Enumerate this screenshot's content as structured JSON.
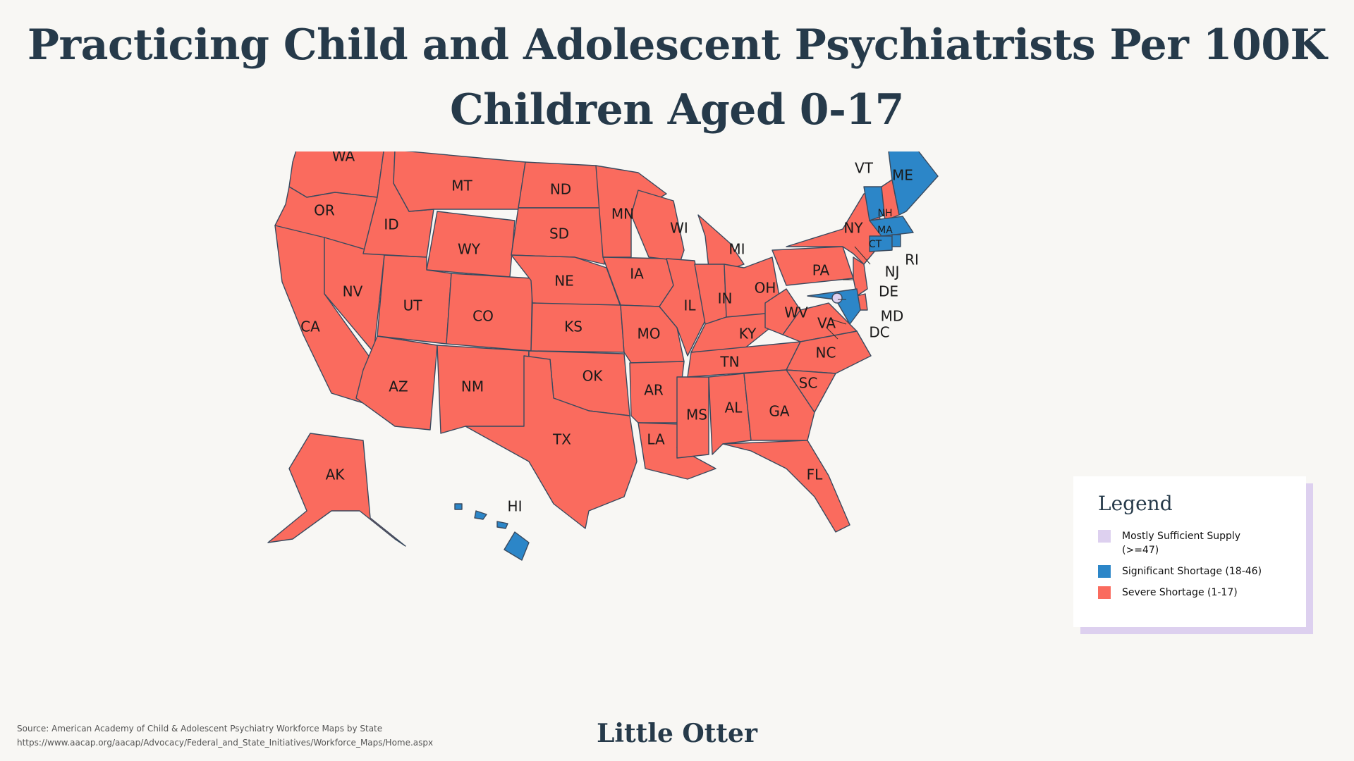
{
  "title_line1": "Practicing Child and Adolescent Psychiatrists Per 100K",
  "title_line2": "Children Aged 0-17",
  "colors": {
    "severe": "#fa6b5e",
    "significant": "#2c86c8",
    "sufficient": "#ddd0ef",
    "border": "#3a4a5e",
    "background": "#f8f7f4"
  },
  "legend": {
    "title": "Legend",
    "items": [
      {
        "label": "Mostly Sufficient Supply",
        "label2": "(>=47)",
        "color": "#ddd0ef"
      },
      {
        "label": "Significant Shortage (18-46)",
        "color": "#2c86c8"
      },
      {
        "label": "Severe Shortage (1-17)",
        "color": "#fa6b5e"
      }
    ]
  },
  "states": {
    "WA": "severe",
    "OR": "severe",
    "CA": "severe",
    "NV": "severe",
    "ID": "severe",
    "MT": "severe",
    "WY": "severe",
    "UT": "severe",
    "AZ": "severe",
    "CO": "severe",
    "NM": "severe",
    "ND": "severe",
    "SD": "severe",
    "NE": "severe",
    "KS": "severe",
    "OK": "severe",
    "TX": "severe",
    "MN": "severe",
    "IA": "severe",
    "MO": "severe",
    "AR": "severe",
    "LA": "severe",
    "WI": "severe",
    "IL": "severe",
    "MS": "severe",
    "MI": "severe",
    "IN": "severe",
    "KY": "severe",
    "TN": "severe",
    "AL": "severe",
    "OH": "severe",
    "WV": "severe",
    "VA": "severe",
    "NC": "severe",
    "SC": "severe",
    "GA": "severe",
    "FL": "severe",
    "PA": "severe",
    "NY": "severe",
    "NJ": "severe",
    "DE": "severe",
    "NH": "severe",
    "AK": "severe",
    "ME": "significant",
    "VT": "significant",
    "MA": "significant",
    "CT": "significant",
    "RI": "significant",
    "MD": "significant",
    "HI": "significant",
    "DC": "sufficient"
  },
  "labels": {
    "WA": "WA",
    "OR": "OR",
    "CA": "CA",
    "NV": "NV",
    "ID": "ID",
    "MT": "MT",
    "WY": "WY",
    "UT": "UT",
    "AZ": "AZ",
    "CO": "CO",
    "NM": "NM",
    "ND": "ND",
    "SD": "SD",
    "NE": "NE",
    "KS": "KS",
    "OK": "OK",
    "TX": "TX",
    "MN": "MN",
    "IA": "IA",
    "MO": "MO",
    "AR": "AR",
    "LA": "LA",
    "WI": "WI",
    "IL": "IL",
    "MS": "MS",
    "MI": "MI",
    "IN": "IN",
    "KY": "KY",
    "TN": "TN",
    "AL": "AL",
    "OH": "OH",
    "WV": "WV",
    "VA": "VA",
    "NC": "NC",
    "SC": "SC",
    "GA": "GA",
    "FL": "FL",
    "PA": "PA",
    "NY": "NY",
    "NJ": "NJ",
    "DE": "DE",
    "MD": "MD",
    "DC": "DC",
    "ME": "ME",
    "VT": "VT",
    "NH": "NH",
    "MA": "MA",
    "CT": "CT",
    "RI": "RI",
    "AK": "AK",
    "HI": "HI"
  },
  "source_line1": "Source: American Academy of Child & Adolescent Psychiatry Workforce Maps by State",
  "source_line2": "https://www.aacap.org/aacap/Advocacy/Federal_and_State_Initiatives/Workforce_Maps/Home.aspx",
  "brand": "Little Otter"
}
